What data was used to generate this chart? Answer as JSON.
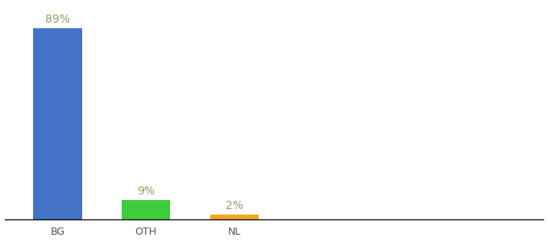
{
  "categories": [
    "BG",
    "OTH",
    "NL"
  ],
  "values": [
    89,
    9,
    2
  ],
  "bar_colors": [
    "#4472c4",
    "#3dcc3d",
    "#f5a623"
  ],
  "label_texts": [
    "89%",
    "9%",
    "2%"
  ],
  "background_color": "#ffffff",
  "ylim": [
    0,
    100
  ],
  "bar_width": 0.55,
  "label_fontsize": 10,
  "tick_fontsize": 9,
  "label_color": "#999966"
}
